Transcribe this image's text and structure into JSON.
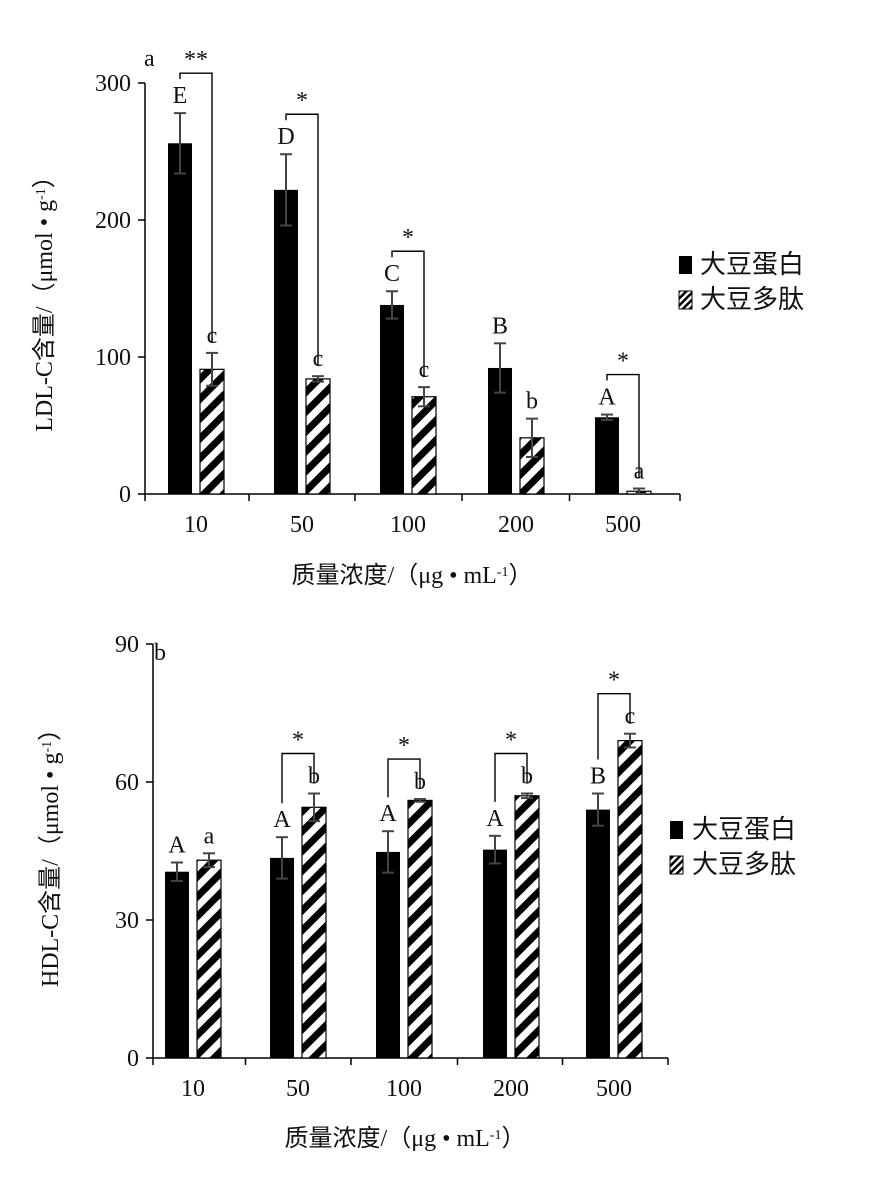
{
  "chart_data": [
    {
      "type": "bar",
      "panel_label": "a",
      "title": "",
      "xlabel": "质量浓度/（μg • mL",
      "xlabel_sup": "-1",
      "xlabel_end": "）",
      "ylabel": "LDL-C含量/（μmol • g",
      "ylabel_sup": "-1",
      "ylabel_end": "）",
      "ylim": [
        0,
        300
      ],
      "yticks": [
        "0",
        "100",
        "200",
        "300"
      ],
      "categories": [
        "10",
        "50",
        "100",
        "200",
        "500"
      ],
      "series": [
        {
          "name": "大豆蛋白",
          "values": [
            256,
            222,
            138,
            92,
            56
          ],
          "errors": [
            22,
            26,
            10,
            18,
            2
          ],
          "letters": [
            "E",
            "D",
            "C",
            "B",
            "A"
          ]
        },
        {
          "name": "大豆多肽",
          "values": [
            91,
            84,
            71,
            41,
            2
          ],
          "errors": [
            12,
            2,
            7,
            14,
            2
          ],
          "letters": [
            "c",
            "c",
            "c",
            "b",
            "a"
          ]
        }
      ],
      "significance": [
        "**",
        "*",
        "*",
        "",
        "*"
      ],
      "legend": [
        "大豆蛋白",
        "大豆多肽"
      ]
    },
    {
      "type": "bar",
      "panel_label": "b",
      "title": "",
      "xlabel": "质量浓度/（μg • mL",
      "xlabel_sup": "-1",
      "xlabel_end": "）",
      "ylabel": "HDL-C含量/（μmol • g",
      "ylabel_sup": "-1",
      "ylabel_end": "）",
      "ylim": [
        0,
        90
      ],
      "yticks": [
        "0",
        "30",
        "60",
        "90"
      ],
      "categories": [
        "10",
        "50",
        "100",
        "200",
        "500"
      ],
      "series": [
        {
          "name": "大豆蛋白",
          "values": [
            40.5,
            43.5,
            44.8,
            45.3,
            54
          ],
          "errors": [
            2,
            4.5,
            4.5,
            3,
            3.5
          ],
          "letters": [
            "A",
            "A",
            "A",
            "A",
            "B"
          ]
        },
        {
          "name": "大豆多肽",
          "values": [
            43,
            54.5,
            56,
            57,
            69
          ],
          "errors": [
            1.5,
            3,
            0.3,
            0.5,
            1.5
          ],
          "letters": [
            "a",
            "b",
            "b",
            "b",
            "c"
          ]
        }
      ],
      "significance": [
        "",
        "*",
        "*",
        "*",
        "*"
      ],
      "legend": [
        "大豆蛋白",
        "大豆多肽"
      ]
    }
  ]
}
